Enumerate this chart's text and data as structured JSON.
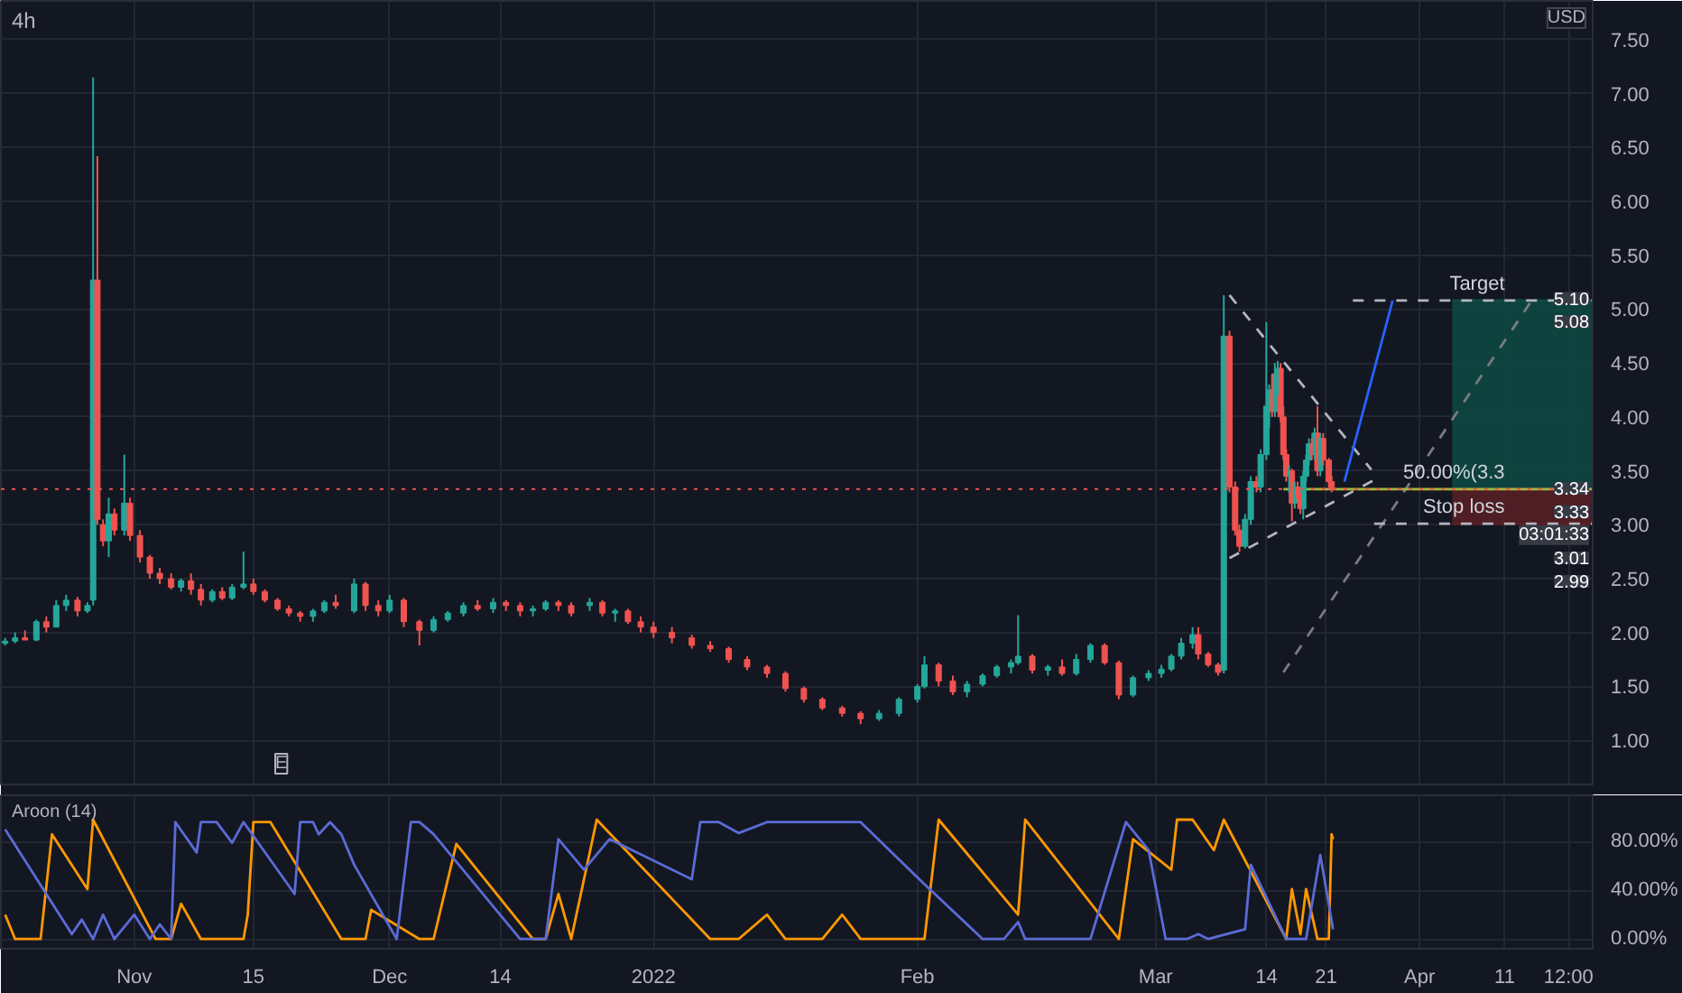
{
  "chart_data": [
    {
      "type": "candlestick",
      "title": "4h",
      "ylabel": "USD",
      "x": [
        "2021-10-16T20:00",
        "2021-10-18T00:00",
        "2021-10-19T04:00",
        "2021-10-20T12:00",
        "2021-10-21T16:00",
        "2021-10-22T20:00",
        "2021-10-24T00:00",
        "2021-10-25T08:00",
        "2021-10-26T12:00",
        "2021-10-27T04:00",
        "2021-10-27T16:00",
        "2021-10-28T08:00",
        "2021-10-29T00:00",
        "2021-10-29T16:00",
        "2021-10-30T20:00",
        "2021-10-31T12:00",
        "2021-11-01T16:00",
        "2021-11-02T20:00",
        "2021-11-04T00:00",
        "2021-11-05T08:00",
        "2021-11-06T12:00",
        "2021-11-07T16:00",
        "2021-11-08T20:00",
        "2021-11-10T04:00",
        "2021-11-11T08:00",
        "2021-11-12T12:00",
        "2021-11-13T20:00",
        "2021-11-15T00:00",
        "2021-11-16T08:00",
        "2021-11-17T20:00",
        "2021-11-19T04:00",
        "2021-11-20T12:00",
        "2021-11-22T00:00",
        "2021-11-23T08:00",
        "2021-11-24T16:00",
        "2021-11-26T20:00",
        "2021-11-28T04:00",
        "2021-11-29T16:00",
        "2021-12-01T00:00",
        "2021-12-02T16:00",
        "2021-12-04T12:00",
        "2021-12-06T04:00",
        "2021-12-07T20:00",
        "2021-12-09T16:00",
        "2021-12-11T08:00",
        "2021-12-13T04:00",
        "2021-12-14T16:00",
        "2021-12-16T08:00",
        "2021-12-17T20:00",
        "2021-12-19T08:00",
        "2021-12-20T20:00",
        "2021-12-22T08:00",
        "2021-12-24T12:00",
        "2021-12-26T00:00",
        "2021-12-27T12:00",
        "2021-12-29T00:00",
        "2021-12-30T12:00",
        "2022-01-01T00:00",
        "2022-01-03T04:00",
        "2022-01-05T12:00",
        "2022-01-07T16:00",
        "2022-01-09T20:00",
        "2022-01-12T00:00",
        "2022-01-14T08:00",
        "2022-01-16T12:00",
        "2022-01-18T16:00",
        "2022-01-20T20:00",
        "2022-01-23T04:00",
        "2022-01-25T08:00",
        "2022-01-27T12:00",
        "2022-01-29T20:00",
        "2022-02-01T00:00",
        "2022-02-01T20:00",
        "2022-02-03T12:00",
        "2022-02-05T04:00",
        "2022-02-06T20:00",
        "2022-02-08T16:00",
        "2022-02-10T08:00",
        "2022-02-12T00:00",
        "2022-02-12T20:00",
        "2022-02-14T12:00",
        "2022-02-16T08:00",
        "2022-02-18T00:00",
        "2022-02-19T16:00",
        "2022-02-21T08:00",
        "2022-02-23T00:00",
        "2022-02-24T16:00",
        "2022-02-26T08:00",
        "2022-02-28T04:00",
        "2022-03-01T16:00",
        "2022-03-02T20:00",
        "2022-03-04T00:00",
        "2022-03-05T08:00",
        "2022-03-06T00:00",
        "2022-03-07T04:00",
        "2022-03-08T08:00",
        "2022-03-09T00:00",
        "2022-03-09T16:00",
        "2022-03-10T08:00",
        "2022-03-10T20:00",
        "2022-03-11T12:00",
        "2022-03-12T04:00",
        "2022-03-12T20:00",
        "2022-03-13T08:00",
        "2022-03-14T00:00",
        "2022-03-14T08:00",
        "2022-03-14T16:00",
        "2022-03-15T00:00",
        "2022-03-15T08:00",
        "2022-03-15T16:00",
        "2022-03-16T00:00",
        "2022-03-16T08:00",
        "2022-03-16T16:00",
        "2022-03-17T00:00",
        "2022-03-17T08:00",
        "2022-03-17T16:00",
        "2022-03-18T00:00",
        "2022-03-18T08:00",
        "2022-03-18T16:00",
        "2022-03-19T00:00",
        "2022-03-19T08:00",
        "2022-03-19T16:00",
        "2022-03-20T00:00",
        "2022-03-20T08:00",
        "2022-03-20T16:00",
        "2022-03-21T08:00",
        "2022-03-21T16:00"
      ],
      "ohlc": [
        [
          1.9,
          1.95,
          1.88,
          1.92
        ],
        [
          1.92,
          2.0,
          1.9,
          1.95
        ],
        [
          1.95,
          2.02,
          1.93,
          1.93
        ],
        [
          1.93,
          2.12,
          1.92,
          2.1
        ],
        [
          2.1,
          2.15,
          2.0,
          2.05
        ],
        [
          2.05,
          2.3,
          2.05,
          2.25
        ],
        [
          2.25,
          2.35,
          2.2,
          2.3
        ],
        [
          2.3,
          2.33,
          2.15,
          2.2
        ],
        [
          2.2,
          2.28,
          2.18,
          2.25
        ],
        [
          2.3,
          7.15,
          2.25,
          5.27
        ],
        [
          5.27,
          6.42,
          3.0,
          3.05
        ],
        [
          3.0,
          3.05,
          2.8,
          2.85
        ],
        [
          2.85,
          3.25,
          2.7,
          3.1
        ],
        [
          3.1,
          3.15,
          2.9,
          2.95
        ],
        [
          2.95,
          3.65,
          2.9,
          3.2
        ],
        [
          3.2,
          3.25,
          2.85,
          2.9
        ],
        [
          2.9,
          2.95,
          2.65,
          2.7
        ],
        [
          2.7,
          2.72,
          2.5,
          2.55
        ],
        [
          2.55,
          2.6,
          2.45,
          2.5
        ],
        [
          2.5,
          2.55,
          2.4,
          2.42
        ],
        [
          2.42,
          2.5,
          2.38,
          2.48
        ],
        [
          2.48,
          2.55,
          2.35,
          2.4
        ],
        [
          2.4,
          2.45,
          2.25,
          2.3
        ],
        [
          2.3,
          2.4,
          2.28,
          2.38
        ],
        [
          2.38,
          2.42,
          2.3,
          2.32
        ],
        [
          2.32,
          2.45,
          2.3,
          2.42
        ],
        [
          2.42,
          2.75,
          2.4,
          2.45
        ],
        [
          2.45,
          2.5,
          2.35,
          2.38
        ],
        [
          2.38,
          2.4,
          2.28,
          2.3
        ],
        [
          2.3,
          2.32,
          2.2,
          2.22
        ],
        [
          2.22,
          2.25,
          2.15,
          2.18
        ],
        [
          2.18,
          2.2,
          2.1,
          2.15
        ],
        [
          2.15,
          2.22,
          2.1,
          2.2
        ],
        [
          2.2,
          2.3,
          2.18,
          2.28
        ],
        [
          2.28,
          2.35,
          2.22,
          2.25
        ],
        [
          2.2,
          2.5,
          2.18,
          2.45
        ],
        [
          2.45,
          2.47,
          2.2,
          2.25
        ],
        [
          2.25,
          2.3,
          2.15,
          2.2
        ],
        [
          2.2,
          2.35,
          2.18,
          2.3
        ],
        [
          2.3,
          2.32,
          2.05,
          2.1
        ],
        [
          2.1,
          2.12,
          1.88,
          2.02
        ],
        [
          2.02,
          2.15,
          2.0,
          2.12
        ],
        [
          2.12,
          2.2,
          2.1,
          2.18
        ],
        [
          2.18,
          2.28,
          2.15,
          2.25
        ],
        [
          2.25,
          2.3,
          2.2,
          2.22
        ],
        [
          2.22,
          2.32,
          2.18,
          2.28
        ],
        [
          2.28,
          2.3,
          2.2,
          2.25
        ],
        [
          2.25,
          2.28,
          2.15,
          2.2
        ],
        [
          2.2,
          2.25,
          2.15,
          2.22
        ],
        [
          2.22,
          2.3,
          2.2,
          2.28
        ],
        [
          2.28,
          2.3,
          2.2,
          2.25
        ],
        [
          2.25,
          2.28,
          2.15,
          2.18
        ],
        [
          2.25,
          2.32,
          2.2,
          2.28
        ],
        [
          2.28,
          2.3,
          2.15,
          2.18
        ],
        [
          2.18,
          2.22,
          2.1,
          2.2
        ],
        [
          2.2,
          2.22,
          2.08,
          2.1
        ],
        [
          2.1,
          2.15,
          2.0,
          2.05
        ],
        [
          2.05,
          2.1,
          1.95,
          2.0
        ],
        [
          2.0,
          2.05,
          1.9,
          1.95
        ],
        [
          1.95,
          1.98,
          1.85,
          1.88
        ],
        [
          1.88,
          1.92,
          1.82,
          1.85
        ],
        [
          1.85,
          1.87,
          1.72,
          1.75
        ],
        [
          1.75,
          1.78,
          1.65,
          1.68
        ],
        [
          1.68,
          1.7,
          1.58,
          1.62
        ],
        [
          1.62,
          1.64,
          1.45,
          1.48
        ],
        [
          1.48,
          1.5,
          1.35,
          1.38
        ],
        [
          1.38,
          1.4,
          1.28,
          1.3
        ],
        [
          1.3,
          1.32,
          1.22,
          1.25
        ],
        [
          1.25,
          1.27,
          1.15,
          1.2
        ],
        [
          1.2,
          1.28,
          1.18,
          1.25
        ],
        [
          1.25,
          1.4,
          1.22,
          1.38
        ],
        [
          1.38,
          1.52,
          1.35,
          1.5
        ],
        [
          1.5,
          1.78,
          1.48,
          1.7
        ],
        [
          1.7,
          1.72,
          1.5,
          1.55
        ],
        [
          1.55,
          1.6,
          1.42,
          1.45
        ],
        [
          1.45,
          1.55,
          1.4,
          1.52
        ],
        [
          1.52,
          1.62,
          1.5,
          1.6
        ],
        [
          1.6,
          1.7,
          1.58,
          1.68
        ],
        [
          1.68,
          1.75,
          1.62,
          1.72
        ],
        [
          1.72,
          2.16,
          1.7,
          1.78
        ],
        [
          1.78,
          1.8,
          1.62,
          1.65
        ],
        [
          1.65,
          1.7,
          1.6,
          1.68
        ],
        [
          1.68,
          1.75,
          1.6,
          1.62
        ],
        [
          1.62,
          1.8,
          1.6,
          1.75
        ],
        [
          1.75,
          1.9,
          1.72,
          1.88
        ],
        [
          1.88,
          1.9,
          1.7,
          1.72
        ],
        [
          1.72,
          1.74,
          1.38,
          1.42
        ],
        [
          1.42,
          1.6,
          1.4,
          1.58
        ],
        [
          1.58,
          1.65,
          1.55,
          1.62
        ],
        [
          1.62,
          1.7,
          1.58,
          1.66
        ],
        [
          1.66,
          1.8,
          1.64,
          1.78
        ],
        [
          1.78,
          1.95,
          1.75,
          1.9
        ],
        [
          1.9,
          2.05,
          1.85,
          1.98
        ],
        [
          1.98,
          2.05,
          1.75,
          1.8
        ],
        [
          1.8,
          1.82,
          1.68,
          1.7
        ],
        [
          1.7,
          1.72,
          1.6,
          1.63
        ],
        [
          1.65,
          5.13,
          1.62,
          4.75
        ],
        [
          4.75,
          4.8,
          3.3,
          3.35
        ],
        [
          3.35,
          3.4,
          2.9,
          2.95
        ],
        [
          2.95,
          3.0,
          2.75,
          2.8
        ],
        [
          2.8,
          3.1,
          2.78,
          3.05
        ],
        [
          3.05,
          3.45,
          3.0,
          3.4
        ],
        [
          3.4,
          3.45,
          3.3,
          3.35
        ],
        [
          3.35,
          3.7,
          3.3,
          3.65
        ],
        [
          3.65,
          4.88,
          3.6,
          4.1
        ],
        [
          4.1,
          4.3,
          3.9,
          4.25
        ],
        [
          4.25,
          4.4,
          4.0,
          4.05
        ],
        [
          4.05,
          4.5,
          4.0,
          4.4
        ],
        [
          4.4,
          4.52,
          4.2,
          4.45
        ],
        [
          4.45,
          4.5,
          3.95,
          4.0
        ],
        [
          4.0,
          4.1,
          3.6,
          3.65
        ],
        [
          3.65,
          3.7,
          3.4,
          3.45
        ],
        [
          3.45,
          3.55,
          3.3,
          3.5
        ],
        [
          3.5,
          3.52,
          3.03,
          3.2
        ],
        [
          3.2,
          3.4,
          3.15,
          3.35
        ],
        [
          3.35,
          3.4,
          3.2,
          3.25
        ],
        [
          3.25,
          3.3,
          3.1,
          3.15
        ],
        [
          3.15,
          3.5,
          3.05,
          3.45
        ],
        [
          3.45,
          3.65,
          3.4,
          3.6
        ],
        [
          3.6,
          3.8,
          3.55,
          3.75
        ],
        [
          3.75,
          3.8,
          3.6,
          3.65
        ],
        [
          3.65,
          3.9,
          3.6,
          3.85
        ],
        [
          3.85,
          4.1,
          3.45,
          3.5
        ],
        [
          3.5,
          3.85,
          3.45,
          3.8
        ],
        [
          3.8,
          3.85,
          3.55,
          3.6
        ],
        [
          3.6,
          3.62,
          3.35,
          3.4
        ],
        [
          3.4,
          3.45,
          3.3,
          3.33
        ]
      ],
      "series": [
        {
          "type": "line",
          "x": [
            "2022-04-04T20:00",
            "2022-04-21T08:00"
          ],
          "values": [
            5.08,
            5.08
          ],
          "lower": [
            3.33,
            3.33
          ],
          "upper": [
            5.08,
            5.08
          ],
          "color": "#0e4a43"
        },
        {
          "type": "line",
          "x": [
            "2022-04-04T20:00",
            "2022-04-21T08:00"
          ],
          "values": [
            3.01,
            3.01
          ],
          "lower": [
            3.01,
            3.01
          ],
          "upper": [
            3.33,
            3.33
          ],
          "color": "#5b1f24"
        },
        {
          "type": "line",
          "x": [
            "2022-03-09T16:00",
            "2022-03-26T08:00"
          ],
          "values": [
            5.13,
            3.51
          ],
          "color": "#b2b5be",
          "line_style": "dashed"
        },
        {
          "type": "line",
          "x": [
            "2022-03-09T16:00",
            "2022-03-27T00:00"
          ],
          "values": [
            2.69,
            3.43
          ],
          "color": "#b2b5be",
          "line_style": "dashed"
        },
        {
          "type": "line",
          "x": [
            "2022-03-16T00:00",
            "2022-04-14T08:00"
          ],
          "values": [
            1.63,
            5.1
          ],
          "color": "#787b86",
          "line_style": "dashed"
        },
        {
          "type": "line",
          "x": [
            "2022-03-24T04:00",
            "2022-04-21T08:00"
          ],
          "values": [
            5.08,
            5.08
          ],
          "color": "#b2b5be",
          "line_style": "dashed"
        },
        {
          "type": "line",
          "x": [
            "2022-03-26T16:00",
            "2022-04-21T08:00"
          ],
          "values": [
            3.01,
            3.01
          ],
          "color": "#b2b5be",
          "line_style": "dashed"
        },
        {
          "type": "line",
          "x": [
            "2022-03-16T00:00",
            "2022-04-21T08:00"
          ],
          "values": [
            3.33,
            3.33
          ],
          "color": "#a5b83b",
          "line_style": "solid"
        },
        {
          "type": "line",
          "x": [
            "2022-03-23T04:00",
            "2022-03-28T20:00"
          ],
          "values": [
            3.4,
            5.08
          ],
          "color": "#2962ff",
          "line_style": "solid"
        }
      ],
      "ref_lines": [
        {
          "axis": "y",
          "value": 3.33,
          "color": "#ef5350",
          "line_style": "dotted"
        }
      ],
      "annotations": [
        {
          "text": "Target",
          "x": "2022-04-11T00:00",
          "y": 5.08
        },
        {
          "text": "50.00%(3.3",
          "x": "2022-04-11T00:00",
          "y": 3.33
        },
        {
          "text": "Stop loss",
          "x": "2022-04-11T00:00",
          "y": 3.01
        },
        "E",
        {
          "text": "5.10",
          "y": 5.1
        },
        {
          "text": "5.08",
          "y": 5.08
        },
        {
          "text": "3.34",
          "y": 3.34
        },
        {
          "text": "3.33",
          "y": 3.33
        },
        {
          "text": "03:01:33",
          "y": 3.33
        },
        {
          "text": "3.01",
          "y": 3.01
        },
        {
          "text": "2.99",
          "y": 2.99
        }
      ],
      "xlim": [
        "2021-10-16T08:00",
        "2022-04-21T08:00"
      ],
      "ylim": [
        0.59,
        7.86
      ],
      "xticks": [
        {
          "value": "2021-11-01",
          "label": null
        },
        {
          "value": "2021-11-15",
          "label": null
        },
        {
          "value": "2021-12-01",
          "label": null
        },
        {
          "value": "2021-12-14",
          "label": null
        },
        {
          "value": "2022-01-01",
          "label": null
        },
        {
          "value": "2022-02-01",
          "label": null
        },
        {
          "value": "2022-03-01",
          "label": null
        },
        {
          "value": "2022-03-14",
          "label": null
        },
        {
          "value": "2022-03-21",
          "label": null
        },
        {
          "value": "2022-04-01",
          "label": null
        },
        {
          "value": "2022-04-11",
          "label": null
        },
        {
          "value": "2022-04-18T12:00",
          "label": null
        }
      ],
      "yticks": [
        {
          "value": 1,
          "label": "1.00"
        },
        {
          "value": 1.5,
          "label": "1.50"
        },
        {
          "value": 2,
          "label": "2.00"
        },
        {
          "value": 2.5,
          "label": "2.50"
        },
        {
          "value": 3,
          "label": "3.00"
        },
        {
          "value": 3.5,
          "label": "3.50"
        },
        {
          "value": 4,
          "label": "4.00"
        },
        {
          "value": 4.5,
          "label": "4.50"
        },
        {
          "value": 5,
          "label": "5.00"
        },
        {
          "value": 5.5,
          "label": "5.50"
        },
        {
          "value": 6,
          "label": "6.00"
        },
        {
          "value": 6.5,
          "label": "6.50"
        },
        {
          "value": 7,
          "label": "7.00"
        },
        {
          "value": 7.5,
          "label": "7.50"
        }
      ],
      "tick_labels": "y",
      "grid": true
    },
    {
      "type": "line",
      "title": "Aroon (14)",
      "series": [
        {
          "color": "#ff9800",
          "x": [
            "2021-10-16T20:00",
            "2021-10-18T00:00",
            "2021-10-21T00:00",
            "2021-10-22T08:00",
            "2021-10-26T12:00",
            "2021-10-27T04:00",
            "2021-11-03T12:00",
            "2021-11-05T08:00",
            "2021-11-06T12:00",
            "2021-11-08T20:00",
            "2021-11-13T20:00",
            "2021-11-14T08:00",
            "2021-11-15T00:00",
            "2021-11-17T00:00",
            "2021-11-25T08:00",
            "2021-11-28T04:00",
            "2021-11-28T20:00",
            "2021-12-04T12:00",
            "2021-12-06T04:00",
            "2021-12-08T20:00",
            "2021-12-17T20:00",
            "2021-12-19T08:00",
            "2021-12-20T20:00",
            "2021-12-22T08:00",
            "2021-12-25T08:00",
            "2022-01-07T16:00",
            "2022-01-11T00:00",
            "2022-01-14T08:00",
            "2022-01-16T12:00",
            "2022-01-20T20:00",
            "2022-01-23T04:00",
            "2022-01-25T08:00",
            "2022-02-01T20:00",
            "2022-02-03T12:00",
            "2022-02-12T20:00",
            "2022-02-13T16:00",
            "2022-02-24T16:00",
            "2022-02-26T08:00",
            "2022-03-02T20:00",
            "2022-03-03T12:00",
            "2022-03-05T08:00",
            "2022-03-07T20:00",
            "2022-03-09T00:00",
            "2022-03-16T08:00",
            "2022-03-17T00:00",
            "2022-03-18T00:00",
            "2022-03-18T16:00",
            "2022-03-20T00:00",
            "2022-03-21T08:00",
            "2022-03-21T16:00",
            "2022-03-21T20:00"
          ],
          "values": [
            20,
            0,
            0,
            86,
            41,
            98,
            0,
            0,
            29,
            0,
            0,
            20,
            96,
            96,
            0,
            0,
            24,
            0,
            0,
            78,
            0,
            0,
            37,
            0,
            98,
            0,
            0,
            20,
            0,
            0,
            20,
            0,
            0,
            98,
            20,
            98,
            0,
            82,
            57,
            98,
            98,
            73,
            98,
            0,
            41,
            4,
            41,
            0,
            0,
            86,
            82
          ]
        },
        {
          "color": "#5b6bd6",
          "x": [
            "2021-10-16T20:00",
            "2021-10-24T16:00",
            "2021-10-25T20:00",
            "2021-10-27T04:00",
            "2021-10-28T08:00",
            "2021-10-29T16:00",
            "2021-11-01T00:00",
            "2021-11-02T20:00",
            "2021-11-04T00:00",
            "2021-11-05T08:00",
            "2021-11-05T20:00",
            "2021-11-08T08:00",
            "2021-11-08T20:00",
            "2021-11-10T16:00",
            "2021-11-12T12:00",
            "2021-11-13T20:00",
            "2021-11-15T16:00",
            "2021-11-19T20:00",
            "2021-11-20T12:00",
            "2021-11-22T00:00",
            "2021-11-22T16:00",
            "2021-11-24T00:00",
            "2021-11-25T08:00",
            "2021-11-26T20:00",
            "2021-12-01T20:00",
            "2021-12-03T12:00",
            "2021-12-04T12:00",
            "2021-12-06T04:00",
            "2021-12-16T08:00",
            "2021-12-19T08:00",
            "2021-12-20T20:00",
            "2021-12-23T20:00",
            "2021-12-26T20:00",
            "2022-01-05T12:00",
            "2022-01-06T12:00",
            "2022-01-08T16:00",
            "2022-01-11T00:00",
            "2022-01-14T08:00",
            "2022-01-25T08:00",
            "2022-02-01T20:00",
            "2022-02-08T16:00",
            "2022-02-11T04:00",
            "2022-02-12T20:00",
            "2022-02-13T16:00",
            "2022-02-21T08:00",
            "2022-02-25T12:00",
            "2022-02-28T04:00",
            "2022-03-02T04:00",
            "2022-03-04T16:00",
            "2022-03-06T00:00",
            "2022-03-07T04:00",
            "2022-03-11T12:00",
            "2022-03-12T04:00",
            "2022-03-16T08:00",
            "2022-03-18T16:00",
            "2022-03-20T08:00",
            "2022-03-21T20:00"
          ],
          "values": [
            90,
            4,
            16,
            0,
            20,
            0,
            20,
            0,
            12,
            0,
            96,
            71,
            96,
            96,
            79,
            96,
            78,
            37,
            96,
            96,
            86,
            96,
            86,
            61,
            0,
            96,
            96,
            86,
            0,
            0,
            82,
            57,
            82,
            49,
            96,
            96,
            87,
            96,
            96,
            45,
            0,
            0,
            14,
            0,
            0,
            96,
            73,
            0,
            0,
            4,
            0,
            8,
            61,
            0,
            0,
            69,
            8
          ]
        }
      ],
      "xlim": [
        "2021-10-16T08:00",
        "2022-04-21T08:00"
      ],
      "ylim": [
        -8,
        118
      ],
      "xticks": [
        {
          "value": "2021-11-01",
          "label": "Nov"
        },
        {
          "value": "2021-11-15",
          "label": "15"
        },
        {
          "value": "2021-12-01",
          "label": "Dec"
        },
        {
          "value": "2021-12-14",
          "label": "14"
        },
        {
          "value": "2022-01-01",
          "label": "2022"
        },
        {
          "value": "2022-02-01",
          "label": "Feb"
        },
        {
          "value": "2022-03-01",
          "label": "Mar"
        },
        {
          "value": "2022-03-14",
          "label": "14"
        },
        {
          "value": "2022-03-21",
          "label": "21"
        },
        {
          "value": "2022-04-01",
          "label": "Apr"
        },
        {
          "value": "2022-04-11",
          "label": "11"
        },
        {
          "value": "2022-04-18T12:00",
          "label": "12:00"
        }
      ],
      "yticks": [
        {
          "value": 0,
          "label": "0.00%"
        },
        {
          "value": 40,
          "label": "40.00%"
        },
        {
          "value": 80,
          "label": "80.00%"
        }
      ],
      "grid": true
    }
  ]
}
